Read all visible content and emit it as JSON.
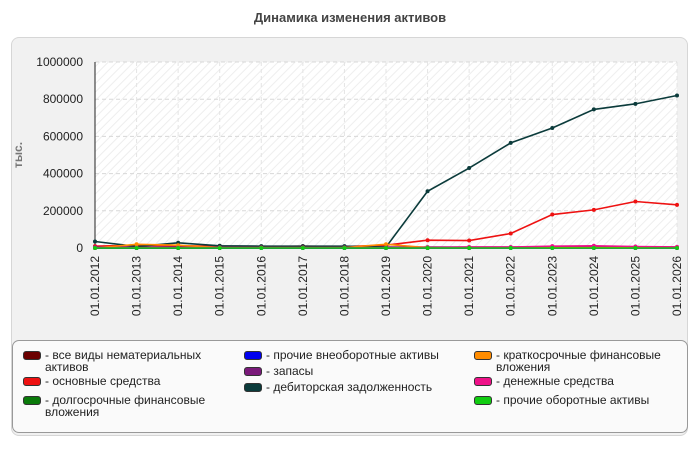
{
  "chart_data": {
    "type": "line",
    "title": "Динамика изменения активов",
    "ylabel": "тыс.",
    "xlabel": "",
    "ylim": [
      0,
      1000000
    ],
    "yticks": [
      "0",
      "200000",
      "400000",
      "600000",
      "800000",
      "1000000"
    ],
    "categories": [
      "01.01.2012",
      "01.01.2013",
      "01.01.2014",
      "01.01.2015",
      "01.01.2016",
      "01.01.2017",
      "01.01.2018",
      "01.01.2019",
      "01.01.2020",
      "01.01.2021",
      "01.01.2022",
      "01.01.2023",
      "01.01.2024",
      "01.01.2025",
      "01.01.2026"
    ],
    "grid": true,
    "legend_position": "bottom",
    "series": [
      {
        "name": "все виды нематериальных активов",
        "color": "#6b0000",
        "values": [
          0,
          0,
          0,
          0,
          0,
          0,
          0,
          0,
          0,
          0,
          0,
          0,
          0,
          0,
          0
        ]
      },
      {
        "name": "основные средства",
        "color": "#ee1111",
        "values": [
          10000,
          15000,
          12000,
          10000,
          8000,
          10000,
          8000,
          15000,
          42000,
          40000,
          78000,
          180000,
          205000,
          250000,
          232000
        ]
      },
      {
        "name": "долгосрочные финансовые вложения",
        "color": "#0a7a0a",
        "values": [
          0,
          0,
          0,
          0,
          0,
          0,
          0,
          0,
          2000,
          2000,
          2000,
          2000,
          2000,
          2000,
          2000
        ]
      },
      {
        "name": "прочие внеоборотные активы",
        "color": "#0000ee",
        "values": [
          0,
          0,
          0,
          0,
          0,
          0,
          0,
          0,
          0,
          0,
          0,
          0,
          0,
          0,
          0
        ]
      },
      {
        "name": "запасы",
        "color": "#7a1a7a",
        "values": [
          5000,
          5000,
          5000,
          5000,
          5000,
          5000,
          5000,
          5000,
          5000,
          5000,
          5000,
          5000,
          5000,
          5000,
          5000
        ]
      },
      {
        "name": "дебиторская задолженность",
        "color": "#0b3b3b",
        "values": [
          35000,
          8000,
          28000,
          12000,
          10000,
          10000,
          10000,
          5000,
          305000,
          430000,
          565000,
          645000,
          745000,
          775000,
          820000
        ]
      },
      {
        "name": "краткосрочные финансовые вложения",
        "color": "#ff8c00",
        "values": [
          0,
          20000,
          15000,
          2000,
          2000,
          2000,
          2000,
          20000,
          2000,
          2000,
          2000,
          2000,
          2000,
          2000,
          2000
        ]
      },
      {
        "name": "денежные средства",
        "color": "#ee1188",
        "values": [
          2000,
          2000,
          2000,
          2000,
          2000,
          2000,
          2000,
          2000,
          2000,
          5000,
          5000,
          10000,
          12000,
          8000,
          6000
        ]
      },
      {
        "name": "прочие оборотные активы",
        "color": "#11cc11",
        "values": [
          0,
          0,
          0,
          0,
          0,
          0,
          0,
          0,
          0,
          0,
          0,
          0,
          0,
          0,
          0
        ]
      }
    ]
  }
}
